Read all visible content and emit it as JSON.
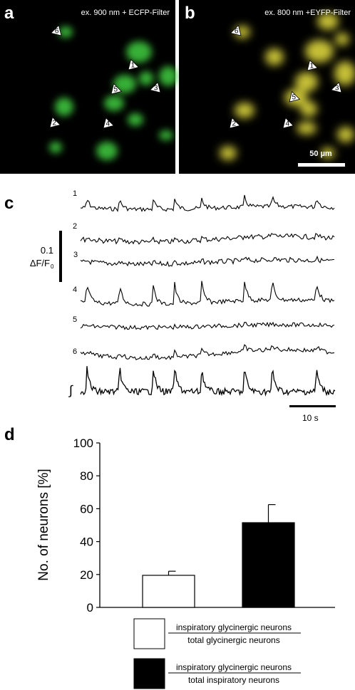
{
  "panels": {
    "a": {
      "letter": "a",
      "caption": "ex. 900 nm + ECFP-Filter",
      "color": "#3fcf3f",
      "cell_labels": [
        "6",
        "1",
        "5",
        "3",
        "2",
        "4"
      ]
    },
    "b": {
      "letter": "b",
      "caption": "ex. 800 nm +EYFP-Filter",
      "color": "#e8e040",
      "cell_labels": [
        "6",
        "1",
        "5",
        "3",
        "2",
        "4"
      ],
      "scalebar_label": "50 µm"
    },
    "c": {
      "letter": "c",
      "scale_value": "0.1",
      "scale_unit_main": "ΔF/F",
      "scale_unit_sub": "0",
      "trace_labels": [
        "1",
        "2",
        "3",
        "4",
        "5",
        "6"
      ],
      "integral_symbol": "∫",
      "time_scale_label": "10 s"
    },
    "d": {
      "letter": "d"
    }
  },
  "chart_data": {
    "type": "bar",
    "categories": [
      "inspiratory glycinergic neurons / total glycinergic neurons",
      "inspiratory glycinergic neurons / total inspiratory neurons"
    ],
    "values": [
      19.5,
      51.5
    ],
    "error": [
      2.5,
      11
    ],
    "bar_colors": [
      "#ffffff",
      "#000000"
    ],
    "ylabel": "No. of neurons [%]",
    "ylim": [
      0,
      100
    ],
    "yticks": [
      "0",
      "20",
      "40",
      "60",
      "80",
      "100"
    ],
    "legend": [
      {
        "numerator": "inspiratory glycinergic neurons",
        "denominator": "total glycinergic neurons",
        "fill": "#ffffff"
      },
      {
        "numerator": "inspiratory glycinergic neurons",
        "denominator": "total inspiratory neurons",
        "fill": "#000000"
      }
    ]
  }
}
